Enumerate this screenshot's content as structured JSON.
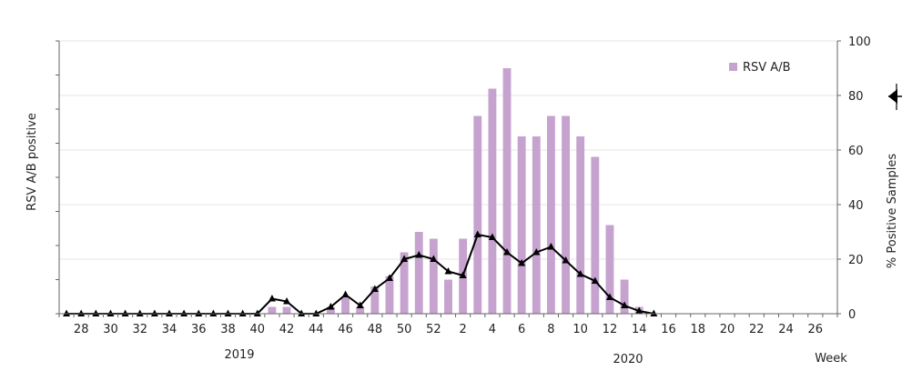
{
  "chart_data": {
    "type": "bar",
    "title": "",
    "ylabel_left": "RSV A/B positive",
    "ylabel_right": "% Positive Samples",
    "xlabel": "Week",
    "year_labels": [
      "2019",
      "2020"
    ],
    "weeks": [
      "27",
      "28",
      "29",
      "30",
      "31",
      "32",
      "33",
      "34",
      "35",
      "36",
      "37",
      "38",
      "39",
      "40",
      "41",
      "42",
      "43",
      "44",
      "45",
      "46",
      "47",
      "48",
      "49",
      "50",
      "51",
      "52",
      "1",
      "2",
      "3",
      "4",
      "5",
      "6",
      "7",
      "8",
      "9",
      "10",
      "11",
      "12",
      "13",
      "14",
      "15",
      "16",
      "17",
      "18",
      "19",
      "20",
      "21",
      "22",
      "23",
      "24",
      "25",
      "26",
      "27"
    ],
    "x_tick_labels": [
      "28",
      "30",
      "32",
      "34",
      "36",
      "38",
      "40",
      "42",
      "44",
      "46",
      "48",
      "50",
      "52",
      "2",
      "4",
      "6",
      "8",
      "10",
      "12",
      "14",
      "16",
      "18",
      "20",
      "22",
      "24",
      "26"
    ],
    "right_axis": {
      "ylim": [
        0,
        100
      ],
      "ticks": [
        "0",
        "20",
        "40",
        "60",
        "80",
        "100"
      ]
    },
    "left_axis": {
      "ylim": [
        0,
        80
      ],
      "tick_count": 9,
      "tick_labels_visible": false
    },
    "series": [
      {
        "name": "RSV A/B",
        "kind": "bar",
        "axis": "left",
        "color": "#c6a3cf",
        "values": [
          0,
          0,
          0,
          0,
          0,
          0,
          0,
          0,
          0,
          0,
          0,
          0,
          0,
          0,
          2,
          2,
          0,
          0,
          2,
          5,
          2,
          8,
          11,
          18,
          24,
          22,
          10,
          22,
          58,
          66,
          72,
          52,
          52,
          58,
          58,
          52,
          46,
          26,
          10,
          2,
          0,
          0,
          0,
          0,
          0,
          0,
          0,
          0,
          0,
          0,
          0,
          0,
          0
        ]
      },
      {
        "name": "",
        "kind": "line",
        "axis": "right",
        "color": "#000000",
        "marker": "triangle",
        "values": [
          0,
          0,
          0,
          0,
          0,
          0,
          0,
          0,
          0,
          0,
          0,
          0,
          0,
          0,
          5.5,
          4.5,
          0,
          0,
          2.5,
          7,
          3,
          9,
          13,
          20,
          21.5,
          20,
          15.5,
          14,
          29,
          28,
          22.5,
          18.5,
          22.5,
          24.5,
          19.5,
          14.5,
          12,
          6,
          3,
          1,
          0,
          null,
          null,
          null,
          null,
          null,
          null,
          null,
          null,
          null,
          null,
          null,
          null
        ]
      }
    ],
    "legend": {
      "position": "top-right",
      "label": "RSV A/B"
    },
    "grid": true
  }
}
